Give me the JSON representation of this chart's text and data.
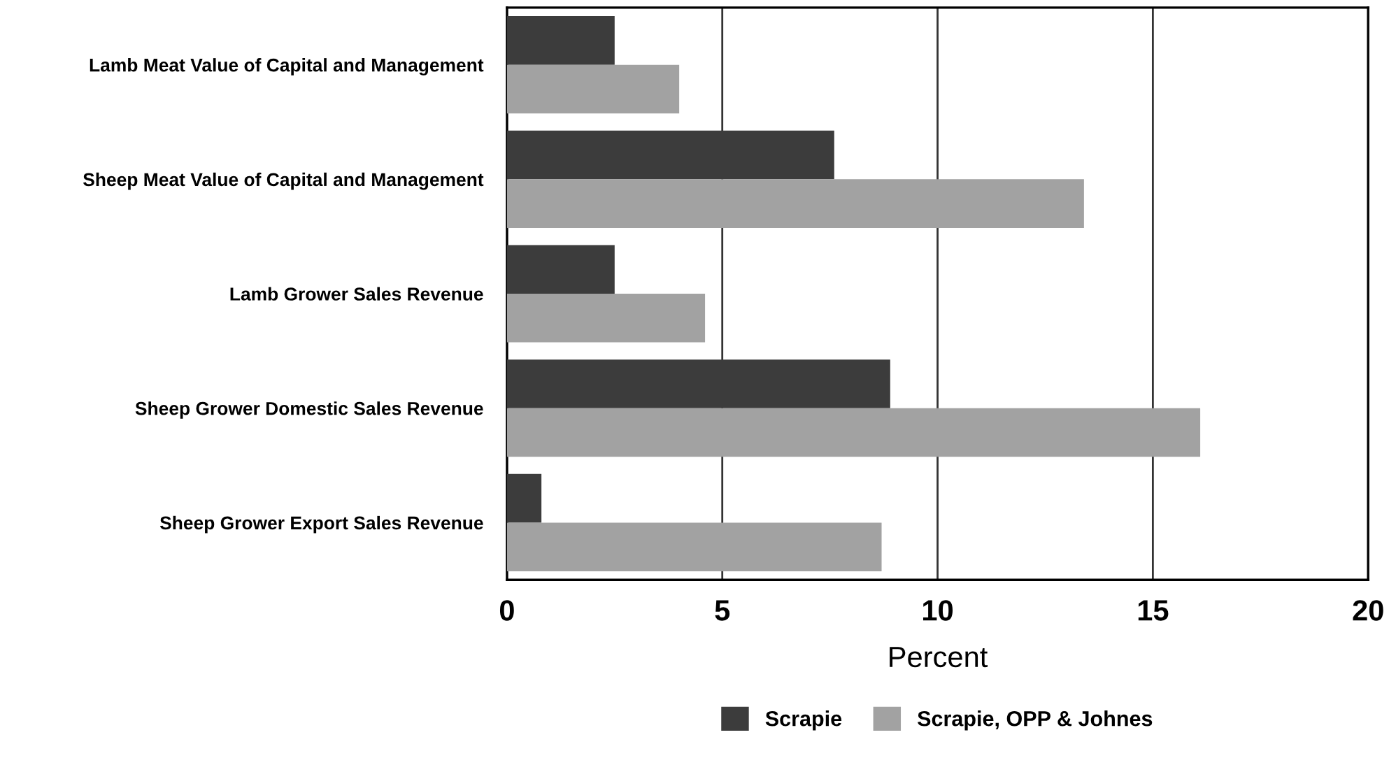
{
  "chart_data": {
    "type": "bar",
    "orientation": "horizontal",
    "xlabel": "Percent",
    "categories": [
      "Lamb Meat Value of Capital and Management",
      "Sheep Meat Value of Capital and Management",
      "Lamb Grower Sales Revenue",
      "Sheep Grower Domestic Sales Revenue",
      "Sheep Grower Export Sales Revenue"
    ],
    "series": [
      {
        "name": "Scrapie",
        "color": "#3c3c3c",
        "values": [
          2.5,
          7.6,
          2.5,
          8.9,
          0.8
        ]
      },
      {
        "name": "Scrapie, OPP & Johnes",
        "color": "#a2a2a2",
        "values": [
          4.0,
          13.4,
          4.6,
          16.1,
          8.7
        ]
      }
    ],
    "xlim": [
      0,
      20
    ],
    "xticks": [
      0,
      5,
      10,
      15,
      20
    ],
    "grid": "x",
    "legend": "bottom"
  }
}
